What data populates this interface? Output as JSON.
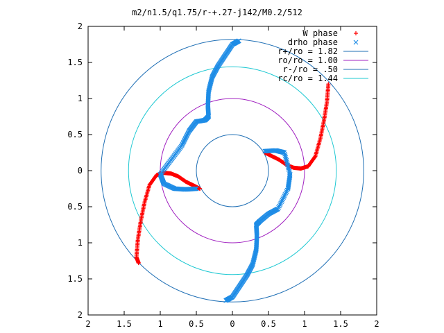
{
  "chart_data": {
    "type": "scatter",
    "title": "m2/n1.5/q1.75/r-+.27-j142/M0.2/512",
    "xlabel": "",
    "ylabel": "",
    "xlim": [
      -2,
      2
    ],
    "ylim": [
      -2,
      2
    ],
    "x_ticks": [
      "2",
      "1.5",
      "1",
      "0.5",
      "0",
      "0.5",
      "1",
      "1.5",
      "2"
    ],
    "y_ticks": [
      "2",
      "1.5",
      "1",
      "0.5",
      "0",
      "0.5",
      "1",
      "1.5",
      "2"
    ],
    "grid": false,
    "legend_position": "top-right",
    "circles": [
      {
        "name": "r+/ro = 1.82",
        "r": 1.82,
        "color": "#1f6fb5"
      },
      {
        "name": "ro/ro = 1.00",
        "r": 1.0,
        "color": "#a020c0"
      },
      {
        "name": "r-/ro = .50",
        "r": 0.5,
        "color": "#1f6fb5"
      },
      {
        "name": "rc/ro = 1.44",
        "r": 1.44,
        "color": "#1ec8d2"
      }
    ],
    "series": [
      {
        "name": "W phase",
        "marker": "+",
        "color": "#ff0000",
        "arms": [
          [
            [
              0.45,
              0.25
            ],
            [
              0.55,
              0.2
            ],
            [
              0.65,
              0.15
            ],
            [
              0.75,
              0.08
            ],
            [
              0.85,
              0.04
            ],
            [
              0.95,
              0.03
            ],
            [
              1.05,
              0.06
            ],
            [
              1.15,
              0.2
            ],
            [
              1.22,
              0.45
            ],
            [
              1.27,
              0.7
            ],
            [
              1.31,
              0.95
            ],
            [
              1.33,
              1.2
            ]
          ],
          [
            [
              -0.45,
              -0.25
            ],
            [
              -0.55,
              -0.2
            ],
            [
              -0.65,
              -0.15
            ],
            [
              -0.75,
              -0.08
            ],
            [
              -0.85,
              -0.04
            ],
            [
              -0.95,
              -0.03
            ],
            [
              -1.05,
              -0.06
            ],
            [
              -1.15,
              -0.2
            ],
            [
              -1.22,
              -0.45
            ],
            [
              -1.27,
              -0.7
            ],
            [
              -1.31,
              -0.95
            ],
            [
              -1.33,
              -1.2
            ],
            [
              -1.3,
              -1.28
            ]
          ]
        ]
      },
      {
        "name": "drho phase",
        "marker": "x",
        "color": "#1e8ce6",
        "arms": [
          [
            [
              0.09,
              1.8
            ],
            [
              0.0,
              1.75
            ],
            [
              -0.1,
              1.6
            ],
            [
              -0.2,
              1.45
            ],
            [
              -0.28,
              1.3
            ],
            [
              -0.33,
              1.1
            ],
            [
              -0.34,
              0.9
            ],
            [
              -0.33,
              0.75
            ],
            [
              -0.38,
              0.7
            ],
            [
              -0.5,
              0.68
            ],
            [
              -0.6,
              0.55
            ],
            [
              -0.7,
              0.35
            ],
            [
              -0.85,
              0.15
            ],
            [
              -1.0,
              -0.05
            ],
            [
              -0.95,
              -0.18
            ],
            [
              -0.8,
              -0.25
            ],
            [
              -0.65,
              -0.26
            ],
            [
              -0.5,
              -0.25
            ]
          ],
          [
            [
              -0.09,
              -1.8
            ],
            [
              0.0,
              -1.75
            ],
            [
              0.1,
              -1.6
            ],
            [
              0.2,
              -1.45
            ],
            [
              0.28,
              -1.3
            ],
            [
              0.33,
              -1.1
            ],
            [
              0.34,
              -0.9
            ],
            [
              0.33,
              -0.75
            ],
            [
              0.38,
              -0.7
            ],
            [
              0.5,
              -0.6
            ],
            [
              0.63,
              -0.53
            ],
            [
              0.77,
              -0.25
            ],
            [
              0.8,
              -0.05
            ],
            [
              0.72,
              0.25
            ],
            [
              0.6,
              0.28
            ],
            [
              0.45,
              0.27
            ]
          ]
        ]
      }
    ]
  }
}
